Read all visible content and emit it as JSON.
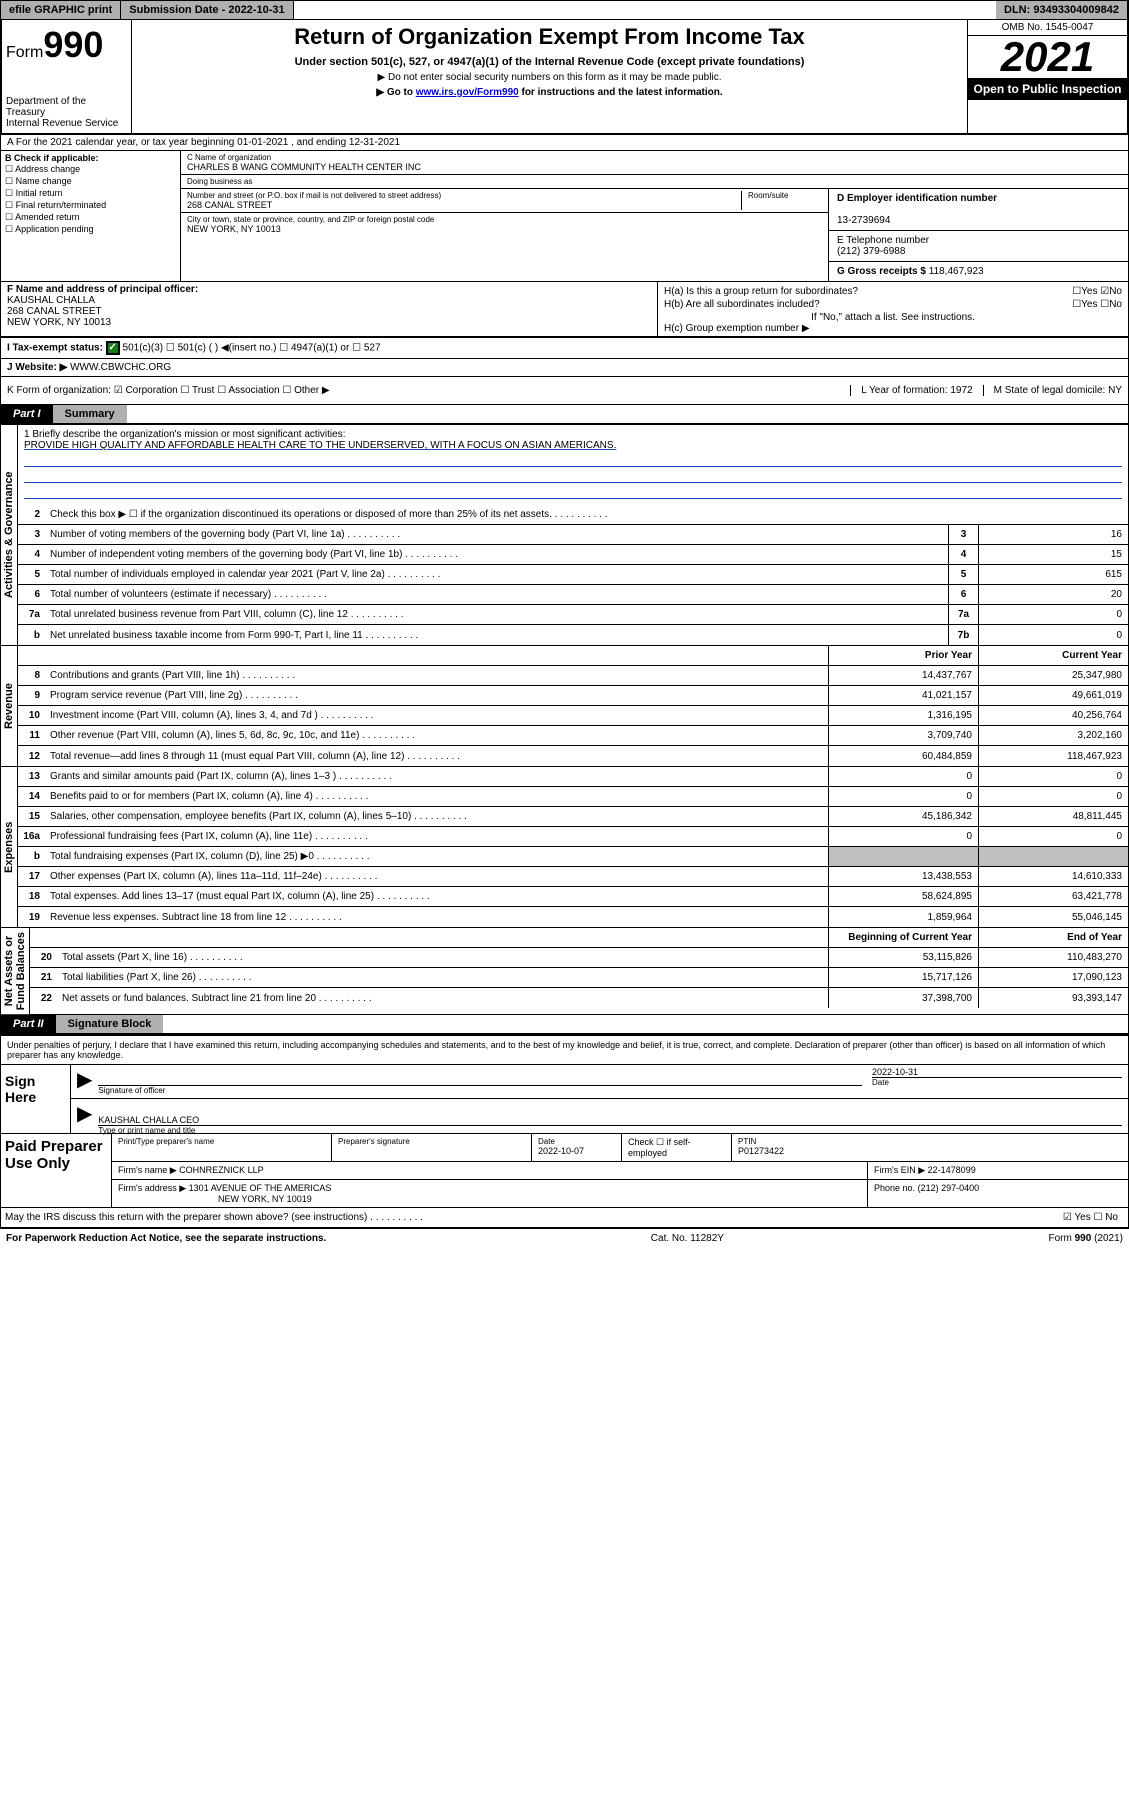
{
  "topbar": {
    "efile": "efile GRAPHIC print",
    "subdate_label": "Submission Date - ",
    "subdate": "2022-10-31",
    "dln_label": "DLN: ",
    "dln": "93493304009842"
  },
  "header": {
    "form_prefix": "Form",
    "form_num": "990",
    "dept": "Department of the Treasury\nInternal Revenue Service",
    "title": "Return of Organization Exempt From Income Tax",
    "sub1": "Under section 501(c), 527, or 4947(a)(1) of the Internal Revenue Code (except private foundations)",
    "sub2": "▶ Do not enter social security numbers on this form as it may be made public.",
    "sub3_pre": "▶ Go to ",
    "sub3_link": "www.irs.gov/Form990",
    "sub3_post": " for instructions and the latest information.",
    "omb": "OMB No. 1545-0047",
    "year": "2021",
    "inspect": "Open to Public Inspection"
  },
  "lineA": "A For the 2021 calendar year, or tax year beginning 01-01-2021   , and ending 12-31-2021",
  "colB": {
    "hdr": "B Check if applicable:",
    "opts": [
      "☐ Address change",
      "☐ Name change",
      "☐ Initial return",
      "☐ Final return/terminated",
      "☐ Amended return",
      "☐ Application pending"
    ]
  },
  "colC": {
    "name_lbl": "C Name of organization",
    "name": "CHARLES B WANG COMMUNITY HEALTH CENTER INC",
    "dba_lbl": "Doing business as",
    "dba": "",
    "street_lbl": "Number and street (or P.O. box if mail is not delivered to street address)",
    "street": "268 CANAL STREET",
    "room_lbl": "Room/suite",
    "city_lbl": "City or town, state or province, country, and ZIP or foreign postal code",
    "city": "NEW YORK, NY  10013"
  },
  "colD": {
    "lbl": "D Employer identification number",
    "val": "13-2739694"
  },
  "colE": {
    "lbl": "E Telephone number",
    "val": "(212) 379-6988"
  },
  "colG": {
    "lbl": "G Gross receipts $ ",
    "val": "118,467,923"
  },
  "colF": {
    "lbl": "F Name and address of principal officer:",
    "name": "KAUSHAL CHALLA",
    "street": "268 CANAL STREET",
    "city": "NEW YORK, NY  10013"
  },
  "colH": {
    "a": "H(a)  Is this a group return for subordinates?",
    "a_ans": "☐Yes ☑No",
    "b": "H(b)  Are all subordinates included?",
    "b_ans": "☐Yes ☐No",
    "b_note": "If \"No,\" attach a list. See instructions.",
    "c": "H(c)  Group exemption number ▶"
  },
  "secI": {
    "lbl": "I   Tax-exempt status:",
    "opts": "501(c)(3)    ☐  501(c) (  ) ◀(insert no.)     ☐ 4947(a)(1) or   ☐ 527"
  },
  "secJ": {
    "lbl": "J   Website: ▶ ",
    "val": "WWW.CBWCHC.ORG"
  },
  "secK": {
    "lbl": "K Form of organization:  ☑ Corporation  ☐ Trust  ☐ Association  ☐ Other ▶",
    "l": "L Year of formation: 1972",
    "m": "M State of legal domicile: NY"
  },
  "part1": {
    "hdr": "Part I",
    "title": "Summary"
  },
  "vtabs": {
    "gov": "Activities & Governance",
    "rev": "Revenue",
    "exp": "Expenses",
    "net": "Net Assets or\nFund Balances"
  },
  "mission": {
    "q": "1   Briefly describe the organization's mission or most significant activities:",
    "txt": "PROVIDE HIGH QUALITY AND AFFORDABLE HEALTH CARE TO THE UNDERSERVED, WITH A FOCUS ON ASIAN AMERICANS."
  },
  "gov_lines": [
    {
      "n": "2",
      "t": "Check this box ▶ ☐  if the organization discontinued its operations or disposed of more than 25% of its net assets."
    },
    {
      "n": "3",
      "t": "Number of voting members of the governing body (Part VI, line 1a)",
      "b": "3",
      "v": "16"
    },
    {
      "n": "4",
      "t": "Number of independent voting members of the governing body (Part VI, line 1b)",
      "b": "4",
      "v": "15"
    },
    {
      "n": "5",
      "t": "Total number of individuals employed in calendar year 2021 (Part V, line 2a)",
      "b": "5",
      "v": "615"
    },
    {
      "n": "6",
      "t": "Total number of volunteers (estimate if necessary)",
      "b": "6",
      "v": "20"
    },
    {
      "n": "7a",
      "t": "Total unrelated business revenue from Part VIII, column (C), line 12",
      "b": "7a",
      "v": "0"
    },
    {
      "n": "b",
      "t": "Net unrelated business taxable income from Form 990-T, Part I, line 11",
      "b": "7b",
      "v": "0"
    }
  ],
  "col_hdrs": {
    "prior": "Prior Year",
    "current": "Current Year"
  },
  "rev_lines": [
    {
      "n": "8",
      "t": "Contributions and grants (Part VIII, line 1h)",
      "p": "14,437,767",
      "c": "25,347,980"
    },
    {
      "n": "9",
      "t": "Program service revenue (Part VIII, line 2g)",
      "p": "41,021,157",
      "c": "49,661,019"
    },
    {
      "n": "10",
      "t": "Investment income (Part VIII, column (A), lines 3, 4, and 7d )",
      "p": "1,316,195",
      "c": "40,256,764"
    },
    {
      "n": "11",
      "t": "Other revenue (Part VIII, column (A), lines 5, 6d, 8c, 9c, 10c, and 11e)",
      "p": "3,709,740",
      "c": "3,202,160"
    },
    {
      "n": "12",
      "t": "Total revenue—add lines 8 through 11 (must equal Part VIII, column (A), line 12)",
      "p": "60,484,859",
      "c": "118,467,923"
    }
  ],
  "exp_lines": [
    {
      "n": "13",
      "t": "Grants and similar amounts paid (Part IX, column (A), lines 1–3 )",
      "p": "0",
      "c": "0"
    },
    {
      "n": "14",
      "t": "Benefits paid to or for members (Part IX, column (A), line 4)",
      "p": "0",
      "c": "0"
    },
    {
      "n": "15",
      "t": "Salaries, other compensation, employee benefits (Part IX, column (A), lines 5–10)",
      "p": "45,186,342",
      "c": "48,811,445"
    },
    {
      "n": "16a",
      "t": "Professional fundraising fees (Part IX, column (A), line 11e)",
      "p": "0",
      "c": "0"
    },
    {
      "n": "b",
      "t": "Total fundraising expenses (Part IX, column (D), line 25) ▶0",
      "grey": true
    },
    {
      "n": "17",
      "t": "Other expenses (Part IX, column (A), lines 11a–11d, 11f–24e)",
      "p": "13,438,553",
      "c": "14,610,333"
    },
    {
      "n": "18",
      "t": "Total expenses. Add lines 13–17 (must equal Part IX, column (A), line 25)",
      "p": "58,624,895",
      "c": "63,421,778"
    },
    {
      "n": "19",
      "t": "Revenue less expenses. Subtract line 18 from line 12",
      "p": "1,859,964",
      "c": "55,046,145"
    }
  ],
  "net_hdrs": {
    "beg": "Beginning of Current Year",
    "end": "End of Year"
  },
  "net_lines": [
    {
      "n": "20",
      "t": "Total assets (Part X, line 16)",
      "p": "53,115,826",
      "c": "110,483,270"
    },
    {
      "n": "21",
      "t": "Total liabilities (Part X, line 26)",
      "p": "15,717,126",
      "c": "17,090,123"
    },
    {
      "n": "22",
      "t": "Net assets or fund balances. Subtract line 21 from line 20",
      "p": "37,398,700",
      "c": "93,393,147"
    }
  ],
  "part2": {
    "hdr": "Part II",
    "title": "Signature Block"
  },
  "sig": {
    "disclaimer": "Under penalties of perjury, I declare that I have examined this return, including accompanying schedules and statements, and to the best of my knowledge and belief, it is true, correct, and complete. Declaration of preparer (other than officer) is based on all information of which preparer has any knowledge.",
    "sign_here": "Sign Here",
    "sig_officer": "Signature of officer",
    "date": "2022-10-31",
    "date_lbl": "Date",
    "name": "KAUSHAL CHALLA  CEO",
    "name_lbl": "Type or print name and title"
  },
  "paid": {
    "title": "Paid Preparer Use Only",
    "r1": {
      "c1_lbl": "Print/Type preparer's name",
      "c1": "",
      "c2_lbl": "Preparer's signature",
      "c2": "",
      "c3_lbl": "Date",
      "c3": "2022-10-07",
      "c4": "Check ☐ if self-employed",
      "c5_lbl": "PTIN",
      "c5": "P01273422"
    },
    "r2": {
      "lbl": "Firm's name    ▶",
      "val": "COHNREZNICK LLP",
      "ein_lbl": "Firm's EIN ▶",
      "ein": "22-1478099"
    },
    "r3": {
      "lbl": "Firm's address ▶",
      "val": "1301 AVENUE OF THE AMERICAS",
      "city": "NEW YORK, NY  10019",
      "ph_lbl": "Phone no.",
      "ph": "(212) 297-0400"
    }
  },
  "may_irs": {
    "q": "May the IRS discuss this return with the preparer shown above? (see instructions)",
    "ans": "☑ Yes  ☐ No"
  },
  "footer": {
    "l": "For Paperwork Reduction Act Notice, see the separate instructions.",
    "m": "Cat. No. 11282Y",
    "r": "Form 990 (2021)"
  }
}
